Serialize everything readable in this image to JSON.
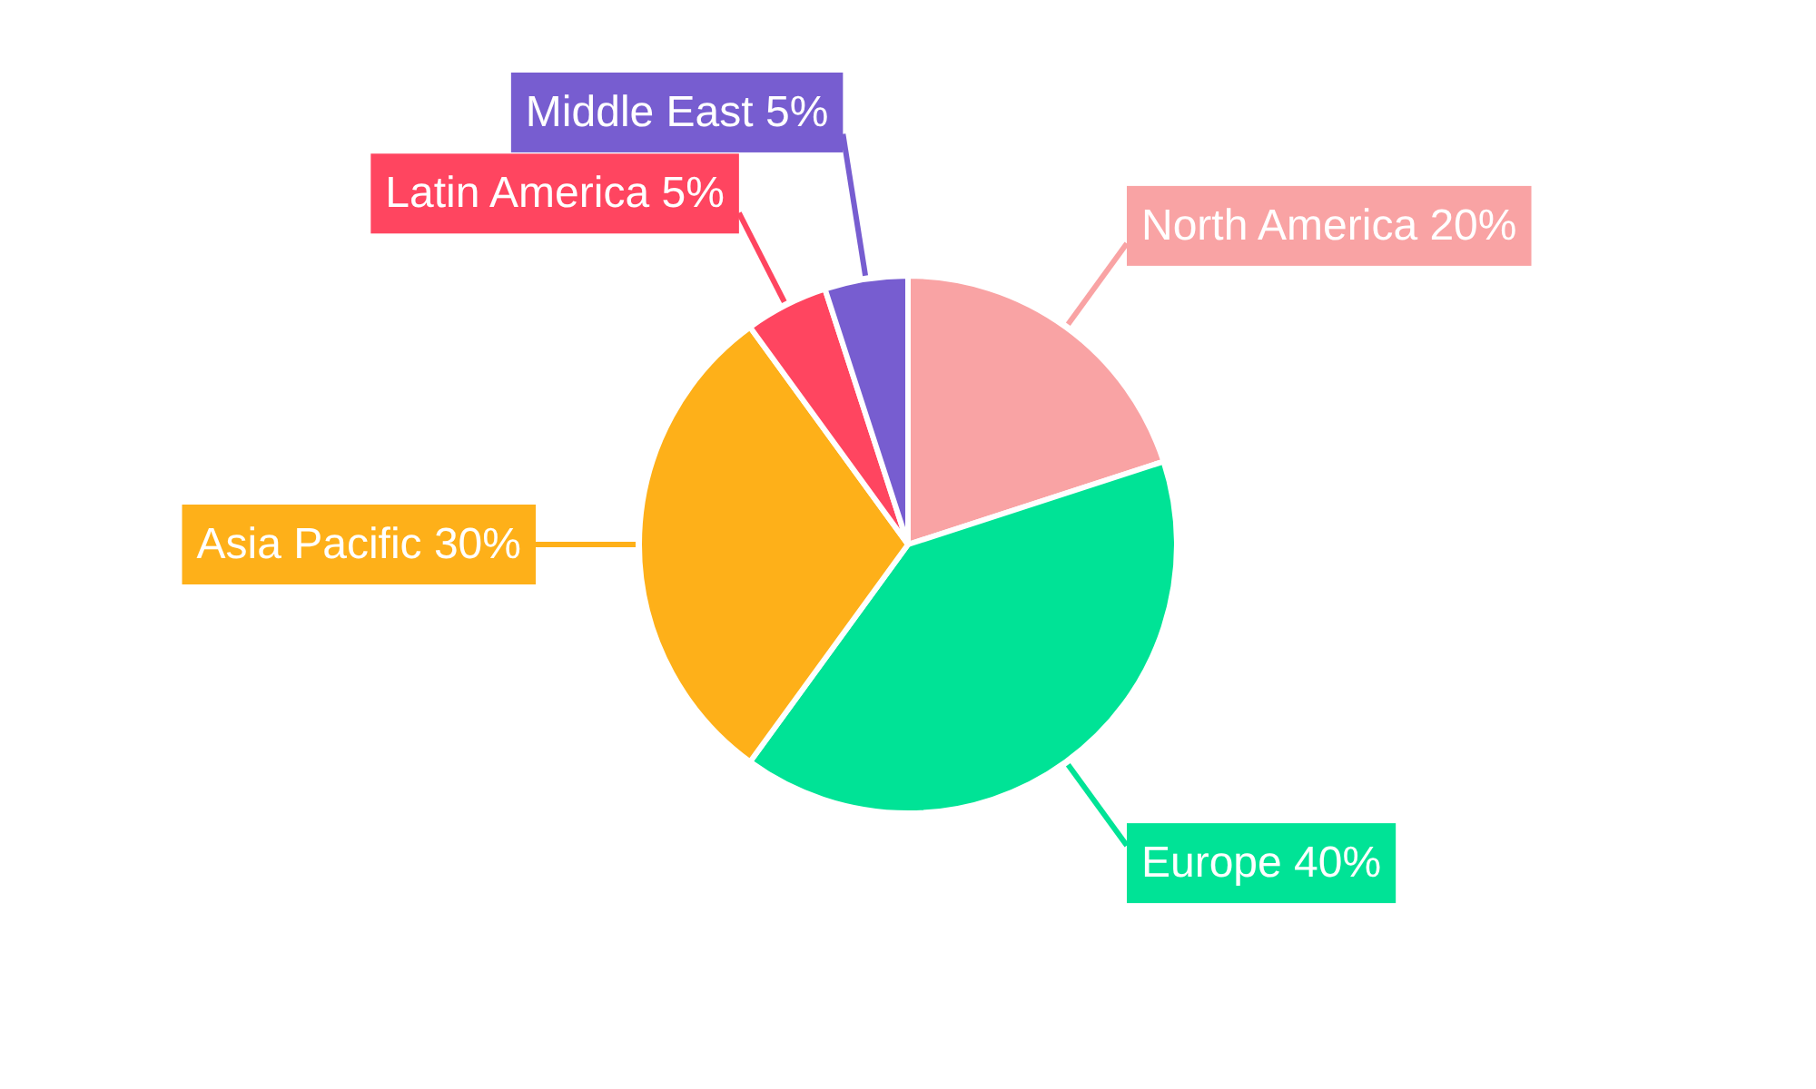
{
  "chart_data": {
    "type": "pie",
    "categories": [
      "North America",
      "Europe",
      "Asia Pacific",
      "Latin America",
      "Middle East"
    ],
    "values": [
      20,
      40,
      30,
      5,
      5
    ],
    "colors": [
      "#f9a3a4",
      "#00e396",
      "#feb019",
      "#ff4560",
      "#775dd0"
    ],
    "value_labels": [
      "20%",
      "40%",
      "30%",
      "5%",
      "5%"
    ]
  }
}
